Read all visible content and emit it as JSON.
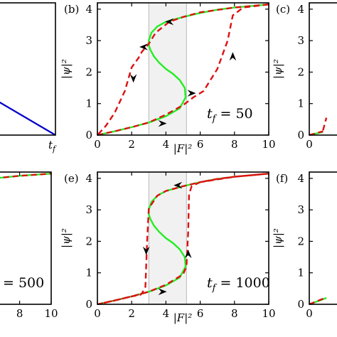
{
  "chart_data": [
    {
      "id": "a",
      "type": "line",
      "panel_letter": "",
      "xlabel": "",
      "ylabel": "",
      "x_tick_labels": [],
      "x_end_label": "t_f",
      "series": [
        {
          "color": "#0000cc",
          "style": "solid",
          "x": [
            0.0,
            1.0
          ],
          "y": [
            0.72,
            0.0
          ]
        }
      ],
      "xlim": [
        0,
        1
      ],
      "ylim": [
        0,
        1
      ]
    },
    {
      "id": "b",
      "type": "line",
      "panel_letter": "(b)",
      "xlabel": "|F|²",
      "ylabel": "|ψ|²",
      "xlim": [
        0,
        10
      ],
      "ylim": [
        0,
        4.2
      ],
      "xticks": [
        0,
        2,
        4,
        6,
        8,
        10
      ],
      "yticks": [
        0,
        1,
        2,
        3,
        4
      ],
      "bistable_band": [
        3,
        5.2
      ],
      "tf_label": {
        "symbol": "t",
        "sub": "f",
        "text": " = 50"
      },
      "series": [
        {
          "color": "#22ee22",
          "style": "solid",
          "x": [
            0,
            1,
            2,
            3,
            4,
            4.8,
            5.15,
            5.1,
            4.8,
            4.4,
            4.0,
            3.6,
            3.3,
            3.1,
            3.0,
            3.0,
            3.15,
            3.5,
            4,
            5,
            6,
            7,
            8,
            9,
            10
          ],
          "y": [
            0,
            0.12,
            0.25,
            0.4,
            0.6,
            0.85,
            1.2,
            1.5,
            1.75,
            1.95,
            2.1,
            2.3,
            2.5,
            2.7,
            2.85,
            3.0,
            3.25,
            3.45,
            3.6,
            3.75,
            3.88,
            3.98,
            4.05,
            4.1,
            4.15
          ]
        },
        {
          "color": "#dd1111",
          "style": "dashed",
          "x": [
            0,
            1,
            2,
            3,
            4,
            5,
            5.6,
            6.2,
            7,
            7.6,
            7.9,
            8.5,
            10
          ],
          "y": [
            0,
            0.12,
            0.25,
            0.4,
            0.65,
            0.95,
            1.2,
            1.4,
            2.1,
            3.0,
            3.8,
            4.05,
            4.15
          ]
        },
        {
          "color": "#dd1111",
          "style": "dashed",
          "x": [
            10,
            8,
            6,
            5,
            4.2,
            3.4,
            3.0,
            2.6,
            2.4,
            2.2,
            2.0,
            1.6,
            1.0,
            0.5,
            0
          ],
          "y": [
            4.15,
            4.05,
            3.9,
            3.75,
            3.6,
            3.25,
            2.9,
            2.65,
            2.45,
            2.3,
            2.15,
            1.4,
            0.7,
            0.3,
            0
          ]
        }
      ],
      "arrows": [
        {
          "x": 3.8,
          "y": 0.37,
          "dir": "right"
        },
        {
          "x": 5.5,
          "y": 1.33,
          "dir": "right"
        },
        {
          "x": 4.2,
          "y": 3.6,
          "dir": "left"
        },
        {
          "x": 2.7,
          "y": 2.8,
          "dir": "left"
        },
        {
          "x": 7.9,
          "y": 2.5,
          "dir": "up"
        },
        {
          "x": 2.1,
          "y": 1.8,
          "dir": "down"
        }
      ]
    },
    {
      "id": "c",
      "type": "line",
      "panel_letter": "(c)",
      "xlabel": "",
      "ylabel": "|ψ|²",
      "xlim": [
        0,
        10
      ],
      "ylim": [
        0,
        4.2
      ],
      "xticks": [
        0
      ],
      "yticks": [
        0,
        1,
        2,
        3,
        4
      ],
      "series": [
        {
          "color": "#22ee22",
          "style": "solid",
          "x": [
            0,
            0.8
          ],
          "y": [
            0,
            0.1
          ]
        },
        {
          "color": "#dd1111",
          "style": "dashed",
          "x": [
            0,
            0.8
          ],
          "y": [
            0,
            0.12
          ]
        },
        {
          "color": "#dd1111",
          "style": "dashed",
          "x": [
            0.8,
            1.0
          ],
          "y": [
            0.15,
            0.55
          ]
        }
      ]
    },
    {
      "id": "d",
      "type": "line",
      "panel_letter": "",
      "xlabel": "",
      "ylabel": "",
      "xlim": [
        0,
        10
      ],
      "ylim": [
        0,
        4.2
      ],
      "xticks": [
        6,
        8,
        10
      ],
      "x_tick_labels": [
        "8",
        "10"
      ],
      "tf_label": {
        "symbol": "",
        "sub": "",
        "text": "= 500"
      },
      "series": [
        {
          "color": "#22ee22",
          "style": "solid",
          "x": [
            0,
            2,
            4,
            6,
            8,
            10
          ],
          "y": [
            3.6,
            3.75,
            3.88,
            3.98,
            4.08,
            4.15
          ]
        },
        {
          "color": "#dd1111",
          "style": "dashed",
          "x": [
            0,
            2,
            4,
            6,
            8,
            10
          ],
          "y": [
            3.6,
            3.75,
            3.88,
            3.98,
            4.08,
            4.15
          ]
        }
      ]
    },
    {
      "id": "e",
      "type": "line",
      "panel_letter": "(e)",
      "xlabel": "|F|²",
      "ylabel": "|ψ|²",
      "xlim": [
        0,
        10
      ],
      "ylim": [
        0,
        4.2
      ],
      "xticks": [
        0,
        2,
        4,
        6,
        8,
        10
      ],
      "yticks": [
        0,
        1,
        2,
        3,
        4
      ],
      "bistable_band": [
        3,
        5.2
      ],
      "tf_label": {
        "symbol": "t",
        "sub": "f",
        "text": " = 1000"
      },
      "series": [
        {
          "color": "#22ee22",
          "style": "solid",
          "x": [
            0,
            1,
            2,
            3,
            4,
            4.8,
            5.15,
            5.1,
            4.8,
            4.4,
            4.0,
            3.6,
            3.3,
            3.1,
            3.0,
            3.0,
            3.15,
            3.5,
            4,
            5,
            6,
            7,
            8,
            9,
            10
          ],
          "y": [
            0,
            0.12,
            0.25,
            0.4,
            0.6,
            0.85,
            1.2,
            1.5,
            1.75,
            1.95,
            2.1,
            2.3,
            2.5,
            2.7,
            2.85,
            3.0,
            3.25,
            3.45,
            3.6,
            3.75,
            3.88,
            3.98,
            4.05,
            4.1,
            4.15
          ]
        },
        {
          "color": "#dd1111",
          "style": "dashed",
          "x": [
            0,
            1,
            2,
            3,
            4,
            5.0,
            5.2,
            5.3,
            5.35,
            5.5,
            6,
            7,
            8,
            9,
            10
          ],
          "y": [
            0,
            0.12,
            0.25,
            0.4,
            0.62,
            0.95,
            1.2,
            2.3,
            3.5,
            3.75,
            3.88,
            3.98,
            4.05,
            4.1,
            4.15
          ]
        },
        {
          "color": "#dd1111",
          "style": "dashed",
          "x": [
            10,
            8,
            6,
            5,
            4,
            3.5,
            3.0,
            2.9,
            2.8,
            2.6,
            2.5,
            2.0,
            1.0,
            0
          ],
          "y": [
            4.15,
            4.05,
            3.88,
            3.75,
            3.6,
            3.45,
            3.05,
            2.0,
            0.55,
            0.35,
            0.3,
            0.25,
            0.12,
            0
          ]
        }
      ],
      "arrows": [
        {
          "x": 3.8,
          "y": 0.4,
          "dir": "right"
        },
        {
          "x": 4.7,
          "y": 3.78,
          "dir": "left"
        },
        {
          "x": 2.85,
          "y": 1.7,
          "dir": "down"
        },
        {
          "x": 5.3,
          "y": 1.6,
          "dir": "up"
        }
      ]
    },
    {
      "id": "f",
      "type": "line",
      "panel_letter": "(f)",
      "xlabel": "",
      "ylabel": "|ψ|²",
      "xlim": [
        0,
        10
      ],
      "ylim": [
        0,
        4.2
      ],
      "xticks": [
        0
      ],
      "yticks": [
        0,
        1,
        2,
        3,
        4
      ],
      "series": [
        {
          "color": "#22ee22",
          "style": "solid",
          "x": [
            0,
            1.0
          ],
          "y": [
            0,
            0.2
          ]
        },
        {
          "color": "#dd1111",
          "style": "dashed",
          "x": [
            0,
            1.0
          ],
          "y": [
            0,
            0.22
          ]
        }
      ]
    }
  ]
}
